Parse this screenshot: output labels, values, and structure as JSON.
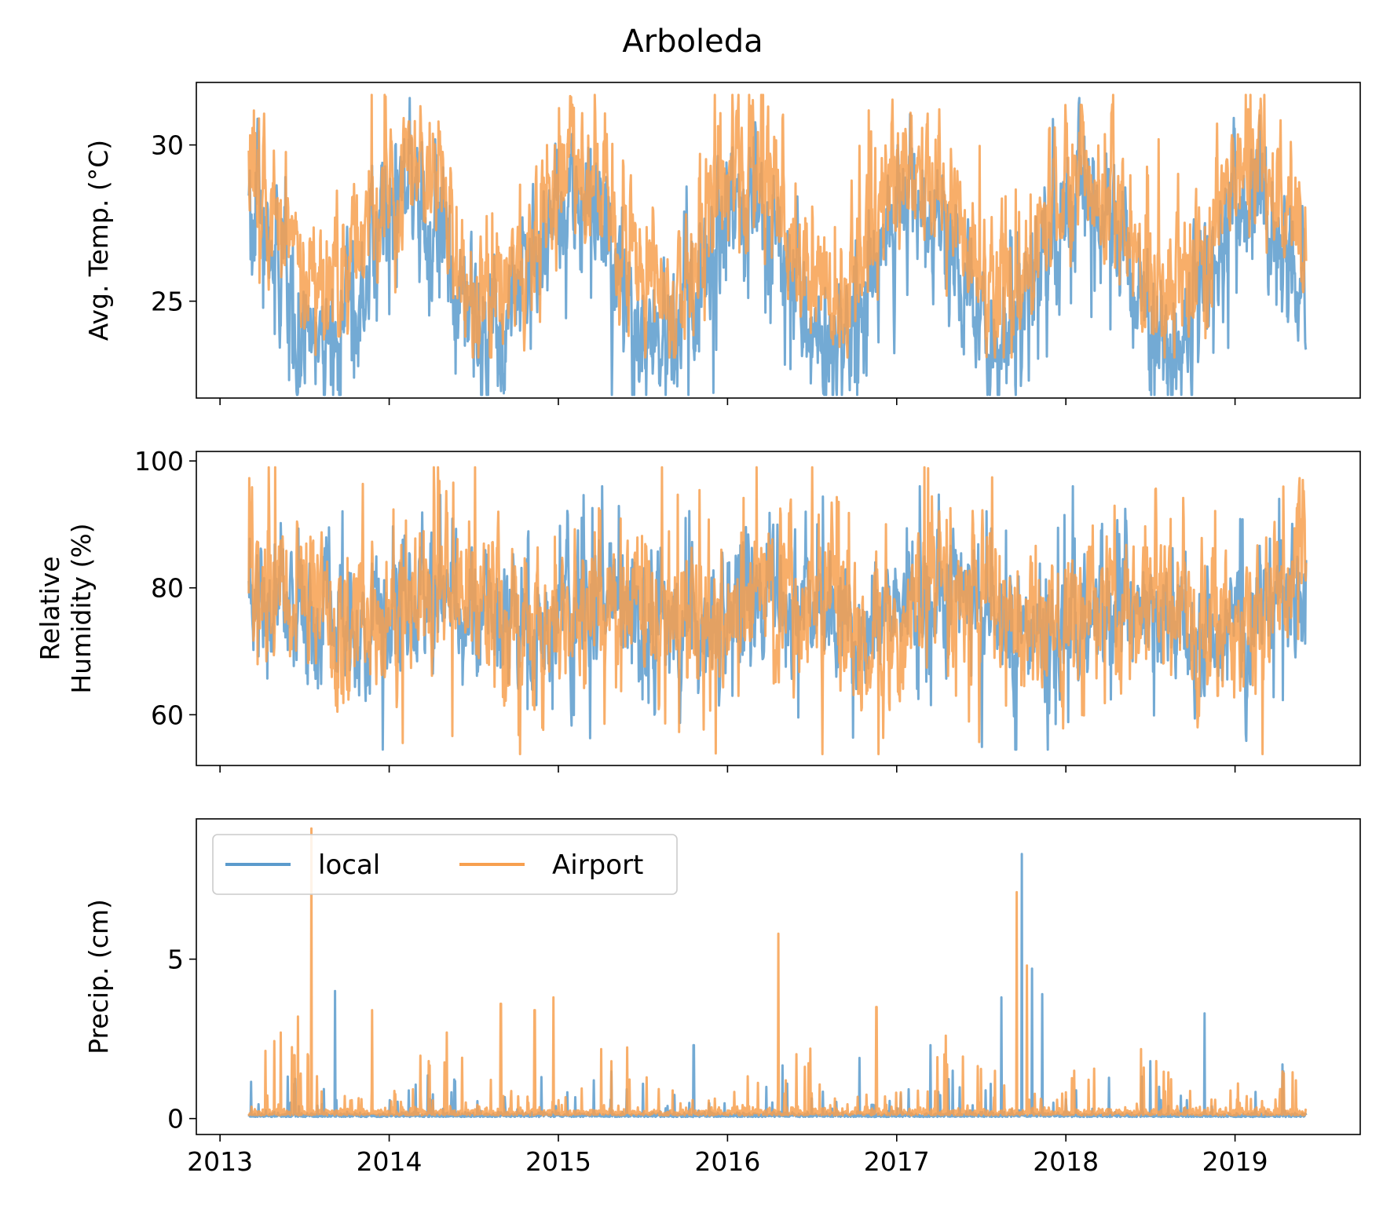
{
  "title": "Arboleda",
  "colors": {
    "local": "#5b9bcc",
    "airport": "#f7a04f"
  },
  "legend": {
    "items": [
      "local",
      "Airport"
    ],
    "placement": "upper-left",
    "columns": 2
  },
  "chart_data": [
    {
      "type": "line",
      "name": "temperature",
      "ylabel": "Avg. Temp. (°C)",
      "ylabel_lines": [
        "Avg. Temp. (°C)"
      ],
      "ylim": [
        21.9,
        32.0
      ],
      "yticks": [
        25,
        30
      ],
      "xlim": [
        2012.86,
        2019.74
      ],
      "xticks": [
        2013,
        2014,
        2015,
        2016,
        2017,
        2018,
        2019
      ],
      "show_xticklabels": false,
      "series": [
        {
          "name": "local",
          "kind": "seasonal",
          "base": 26.1,
          "amp": 2.3,
          "phase": 0.1,
          "noise": 0.9,
          "spike_prob": 0.03,
          "spike_mag": -2.5,
          "min": 22.0,
          "max": 31.5
        },
        {
          "name": "Airport",
          "kind": "seasonal",
          "base": 27.2,
          "amp": 2.0,
          "phase": 0.12,
          "noise": 0.9,
          "spike_prob": 0.03,
          "spike_mag": 2.2,
          "min": 23.2,
          "max": 31.6
        }
      ]
    },
    {
      "type": "line",
      "name": "humidity",
      "ylabel": "Relative Humidity (%)",
      "ylabel_lines": [
        "Relative",
        "Humidity (%)"
      ],
      "ylim": [
        52.0,
        101.5
      ],
      "yticks": [
        60,
        80,
        100
      ],
      "xlim": [
        2012.86,
        2019.74
      ],
      "xticks": [
        2013,
        2014,
        2015,
        2016,
        2017,
        2018,
        2019
      ],
      "show_xticklabels": false,
      "series": [
        {
          "name": "local",
          "kind": "noisy",
          "base": 76,
          "amp": 3,
          "phase": 0.3,
          "noise": 4.0,
          "spike_prob": 0.05,
          "spike_mag": 11,
          "min": 54.5,
          "max": 96
        },
        {
          "name": "Airport",
          "kind": "noisy",
          "base": 76.5,
          "amp": 3,
          "phase": 0.35,
          "noise": 4.5,
          "spike_prob": 0.06,
          "spike_mag": 12,
          "min": 53.8,
          "max": 99
        }
      ]
    },
    {
      "type": "line",
      "name": "precipitation",
      "ylabel": "Precip. (cm)",
      "ylabel_lines": [
        "Precip. (cm)"
      ],
      "ylim": [
        -0.5,
        9.4
      ],
      "yticks": [
        0,
        5
      ],
      "xlim": [
        2012.86,
        2019.74
      ],
      "xticks": [
        2013,
        2014,
        2015,
        2016,
        2017,
        2018,
        2019
      ],
      "show_xticklabels": true,
      "series": [
        {
          "name": "local",
          "kind": "precip",
          "base": 0.05,
          "noise": 0.15,
          "spike_prob": 0.04,
          "spike_mag": 1.0,
          "peaks": [
            [
              2013.68,
              4.0
            ],
            [
              2014.9,
              1.3
            ],
            [
              2015.8,
              2.3
            ],
            [
              2016.78,
              1.9
            ],
            [
              2017.2,
              2.3
            ],
            [
              2017.62,
              3.8
            ],
            [
              2017.74,
              8.3
            ],
            [
              2017.8,
              4.7
            ],
            [
              2017.86,
              3.9
            ],
            [
              2018.5,
              1.8
            ],
            [
              2018.82,
              3.3
            ],
            [
              2019.28,
              1.7
            ]
          ]
        },
        {
          "name": "Airport",
          "kind": "precip",
          "base": 0.1,
          "noise": 0.25,
          "spike_prob": 0.06,
          "spike_mag": 1.4,
          "peaks": [
            [
              2013.54,
              9.1
            ],
            [
              2013.36,
              2.7
            ],
            [
              2013.46,
              3.2
            ],
            [
              2013.9,
              3.4
            ],
            [
              2014.34,
              2.7
            ],
            [
              2014.66,
              3.6
            ],
            [
              2014.86,
              3.4
            ],
            [
              2014.97,
              3.8
            ],
            [
              2016.3,
              5.8
            ],
            [
              2016.88,
              3.5
            ],
            [
              2017.29,
              2.6
            ],
            [
              2017.71,
              7.1
            ],
            [
              2017.77,
              4.8
            ],
            [
              2018.05,
              1.5
            ],
            [
              2018.46,
              1.6
            ],
            [
              2019.36,
              1.2
            ]
          ]
        }
      ]
    }
  ]
}
